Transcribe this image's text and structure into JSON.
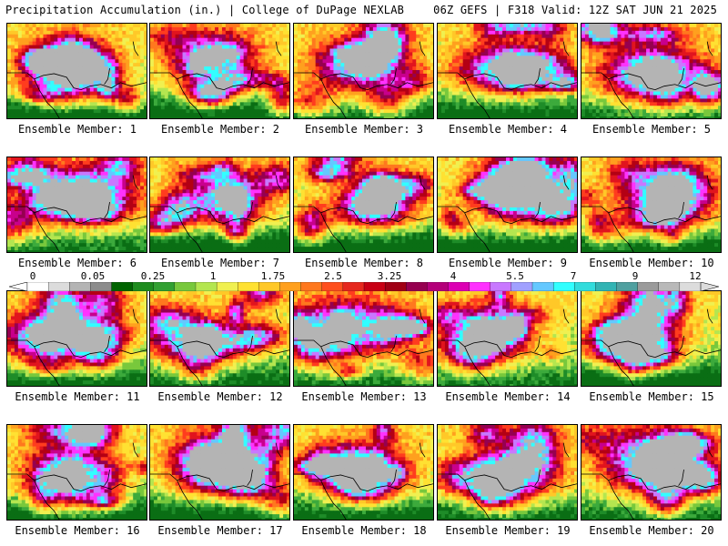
{
  "header": {
    "title_left": "Precipitation Accumulation (in.) | College of DuPage NEXLAB",
    "title_right": "06Z GEFS | F318 Valid: 12Z SAT JUN 21 2025"
  },
  "colorbar": {
    "tick_labels": [
      "0",
      "0.05",
      "0.25",
      "1",
      "1.75",
      "2.5",
      "3.25",
      "4",
      "5.5",
      "7",
      "9",
      "12"
    ],
    "colors": [
      "#ffffff",
      "#dcdcdc",
      "#b4b4b4",
      "#8c8c8c",
      "#006400",
      "#1e8c1e",
      "#32a032",
      "#78c83c",
      "#b4e650",
      "#f0f050",
      "#ffe132",
      "#ffc828",
      "#ffa01e",
      "#ff781e",
      "#ff501e",
      "#e6281e",
      "#c80014",
      "#a00014",
      "#960050",
      "#b4007a",
      "#dc00b4",
      "#ff32ff",
      "#c878ff",
      "#a0a0ff",
      "#64c8ff",
      "#32ffff",
      "#32dcdc",
      "#32b4b4",
      "#50a0a0",
      "#9b9b9b",
      "#b9b9b9",
      "#dcdcdc"
    ]
  },
  "panels": [
    {
      "label": "Ensemble Member: 1"
    },
    {
      "label": "Ensemble Member: 2"
    },
    {
      "label": "Ensemble Member: 3"
    },
    {
      "label": "Ensemble Member: 4"
    },
    {
      "label": "Ensemble Member: 5"
    },
    {
      "label": "Ensemble Member: 6"
    },
    {
      "label": "Ensemble Member: 7"
    },
    {
      "label": "Ensemble Member: 8"
    },
    {
      "label": "Ensemble Member: 9"
    },
    {
      "label": "Ensemble Member: 10"
    },
    {
      "label": "Ensemble Member: 11"
    },
    {
      "label": "Ensemble Member: 12"
    },
    {
      "label": "Ensemble Member: 13"
    },
    {
      "label": "Ensemble Member: 14"
    },
    {
      "label": "Ensemble Member: 15"
    },
    {
      "label": "Ensemble Member: 16"
    },
    {
      "label": "Ensemble Member: 17"
    },
    {
      "label": "Ensemble Member: 18"
    },
    {
      "label": "Ensemble Member: 19"
    },
    {
      "label": "Ensemble Member: 20"
    }
  ]
}
